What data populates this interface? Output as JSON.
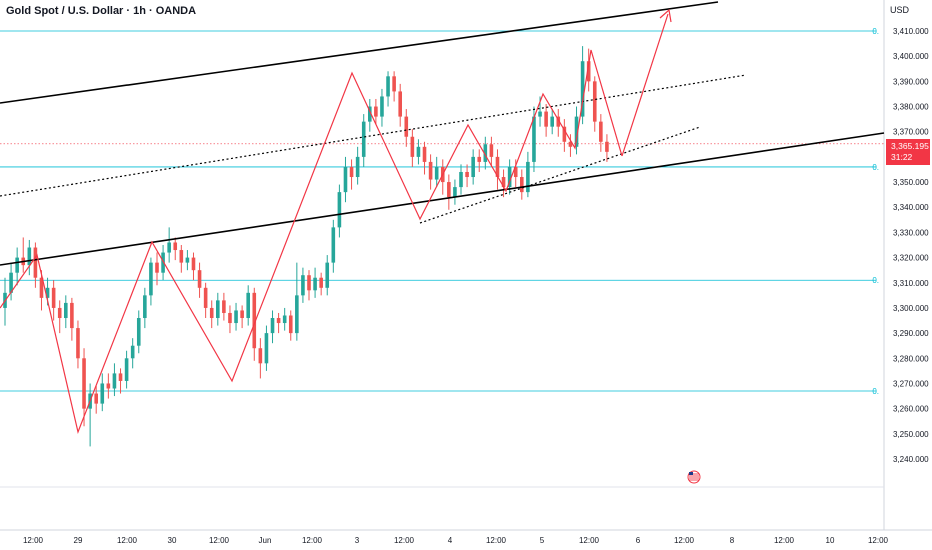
{
  "header": {
    "title": "Gold Spot / U.S. Dollar · 1h · OANDA",
    "currency": "USD"
  },
  "price_badge": {
    "price": "3,365.195",
    "countdown": "31:22"
  },
  "fib_label": "0.",
  "colors": {
    "up": "#26a69a",
    "down": "#ef5350",
    "pattern": "#f23645",
    "fib": "#00bcd4",
    "trend": "#000000"
  },
  "icons": {
    "flag": "us-flag-icon"
  },
  "chart_data": {
    "type": "candlestick",
    "title": "Gold Spot / U.S. Dollar · 1h · OANDA",
    "ylim": [
      3234,
      3418
    ],
    "y_ticks": [
      "3,410.000",
      "3,400.000",
      "3,390.000",
      "3,380.000",
      "3,370.000",
      "3,360.000",
      "3,350.000",
      "3,340.000",
      "3,330.000",
      "3,320.000",
      "3,310.000",
      "3,300.000",
      "3,290.000",
      "3,280.000",
      "3,270.000",
      "3,260.000",
      "3,250.000",
      "3,240.000"
    ],
    "y_tick_values": [
      3410,
      3400,
      3390,
      3380,
      3370,
      3360,
      3350,
      3340,
      3330,
      3320,
      3310,
      3300,
      3290,
      3280,
      3270,
      3260,
      3250,
      3240
    ],
    "x_ticks": [
      "12:00",
      "29",
      "12:00",
      "30",
      "12:00",
      "Jun",
      "12:00",
      "3",
      "12:00",
      "4",
      "12:00",
      "5",
      "12:00",
      "6",
      "12:00",
      "8",
      "12:00",
      "10",
      "12:00"
    ],
    "fib_levels": [
      3410,
      3356,
      3311,
      3267
    ],
    "last_price": 3365.195,
    "candles": [
      [
        3300,
        3306,
        3293,
        3312
      ],
      [
        3306,
        3314,
        3303,
        3318
      ],
      [
        3314,
        3320,
        3309,
        3324
      ],
      [
        3320,
        3317,
        3314,
        3328
      ],
      [
        3317,
        3324,
        3313,
        3327
      ],
      [
        3324,
        3312,
        3308,
        3326
      ],
      [
        3312,
        3304,
        3299,
        3315
      ],
      [
        3304,
        3308,
        3301,
        3312
      ],
      [
        3308,
        3300,
        3295,
        3311
      ],
      [
        3300,
        3296,
        3290,
        3303
      ],
      [
        3296,
        3302,
        3292,
        3305
      ],
      [
        3302,
        3292,
        3287,
        3304
      ],
      [
        3292,
        3280,
        3276,
        3295
      ],
      [
        3280,
        3260,
        3253,
        3284
      ],
      [
        3260,
        3266,
        3245,
        3270
      ],
      [
        3266,
        3262,
        3258,
        3269
      ],
      [
        3262,
        3270,
        3259,
        3274
      ],
      [
        3270,
        3268,
        3264,
        3274
      ],
      [
        3268,
        3274,
        3265,
        3278
      ],
      [
        3274,
        3271,
        3266,
        3276
      ],
      [
        3271,
        3280,
        3268,
        3283
      ],
      [
        3280,
        3285,
        3276,
        3288
      ],
      [
        3285,
        3296,
        3282,
        3299
      ],
      [
        3296,
        3305,
        3292,
        3308
      ],
      [
        3305,
        3318,
        3301,
        3320
      ],
      [
        3318,
        3314,
        3309,
        3322
      ],
      [
        3314,
        3322,
        3311,
        3325
      ],
      [
        3322,
        3326,
        3318,
        3332
      ],
      [
        3326,
        3323,
        3319,
        3328
      ],
      [
        3323,
        3318,
        3314,
        3325
      ],
      [
        3318,
        3320,
        3315,
        3323
      ],
      [
        3320,
        3315,
        3311,
        3322
      ],
      [
        3315,
        3308,
        3304,
        3318
      ],
      [
        3308,
        3300,
        3296,
        3310
      ],
      [
        3300,
        3296,
        3292,
        3303
      ],
      [
        3296,
        3303,
        3293,
        3306
      ],
      [
        3303,
        3298,
        3295,
        3306
      ],
      [
        3298,
        3294,
        3290,
        3301
      ],
      [
        3294,
        3299,
        3291,
        3302
      ],
      [
        3299,
        3296,
        3292,
        3301
      ],
      [
        3296,
        3306,
        3293,
        3309
      ],
      [
        3306,
        3284,
        3279,
        3308
      ],
      [
        3284,
        3278,
        3272,
        3288
      ],
      [
        3278,
        3290,
        3275,
        3293
      ],
      [
        3290,
        3296,
        3286,
        3299
      ],
      [
        3296,
        3294,
        3290,
        3298
      ],
      [
        3294,
        3297,
        3291,
        3300
      ],
      [
        3297,
        3290,
        3287,
        3299
      ],
      [
        3290,
        3305,
        3287,
        3318
      ],
      [
        3305,
        3313,
        3302,
        3316
      ],
      [
        3313,
        3307,
        3303,
        3315
      ],
      [
        3307,
        3312,
        3304,
        3316
      ],
      [
        3312,
        3308,
        3305,
        3314
      ],
      [
        3308,
        3318,
        3305,
        3321
      ],
      [
        3318,
        3332,
        3314,
        3335
      ],
      [
        3332,
        3346,
        3328,
        3349
      ],
      [
        3346,
        3356,
        3342,
        3360
      ],
      [
        3356,
        3352,
        3347,
        3359
      ],
      [
        3352,
        3360,
        3349,
        3364
      ],
      [
        3360,
        3374,
        3356,
        3377
      ],
      [
        3374,
        3380,
        3370,
        3383
      ],
      [
        3380,
        3376,
        3373,
        3383
      ],
      [
        3376,
        3384,
        3372,
        3387
      ],
      [
        3384,
        3392,
        3380,
        3394
      ],
      [
        3392,
        3386,
        3382,
        3394
      ],
      [
        3386,
        3376,
        3372,
        3389
      ],
      [
        3376,
        3368,
        3364,
        3379
      ],
      [
        3368,
        3360,
        3356,
        3371
      ],
      [
        3360,
        3364,
        3357,
        3367
      ],
      [
        3364,
        3358,
        3353,
        3366
      ],
      [
        3358,
        3351,
        3347,
        3361
      ],
      [
        3351,
        3356,
        3348,
        3360
      ],
      [
        3356,
        3350,
        3345,
        3359
      ],
      [
        3350,
        3344,
        3339,
        3353
      ],
      [
        3344,
        3348,
        3341,
        3351
      ],
      [
        3348,
        3354,
        3345,
        3357
      ],
      [
        3354,
        3352,
        3348,
        3357
      ],
      [
        3352,
        3360,
        3349,
        3363
      ],
      [
        3360,
        3358,
        3354,
        3363
      ],
      [
        3358,
        3365,
        3355,
        3368
      ],
      [
        3365,
        3360,
        3356,
        3368
      ],
      [
        3360,
        3352,
        3347,
        3363
      ],
      [
        3352,
        3348,
        3344,
        3355
      ],
      [
        3348,
        3356,
        3345,
        3359
      ],
      [
        3356,
        3352,
        3348,
        3359
      ],
      [
        3352,
        3346,
        3343,
        3355
      ],
      [
        3346,
        3358,
        3344,
        3362
      ],
      [
        3358,
        3376,
        3354,
        3380
      ],
      [
        3376,
        3378,
        3372,
        3384
      ],
      [
        3378,
        3372,
        3368,
        3381
      ],
      [
        3372,
        3376,
        3369,
        3379
      ],
      [
        3376,
        3372,
        3368,
        3379
      ],
      [
        3372,
        3366,
        3362,
        3375
      ],
      [
        3366,
        3364,
        3360,
        3369
      ],
      [
        3364,
        3376,
        3361,
        3380
      ],
      [
        3376,
        3398,
        3373,
        3404
      ],
      [
        3398,
        3390,
        3386,
        3403
      ],
      [
        3390,
        3374,
        3370,
        3392
      ],
      [
        3374,
        3366,
        3362,
        3377
      ],
      [
        3366,
        3362,
        3358,
        3369
      ]
    ]
  }
}
